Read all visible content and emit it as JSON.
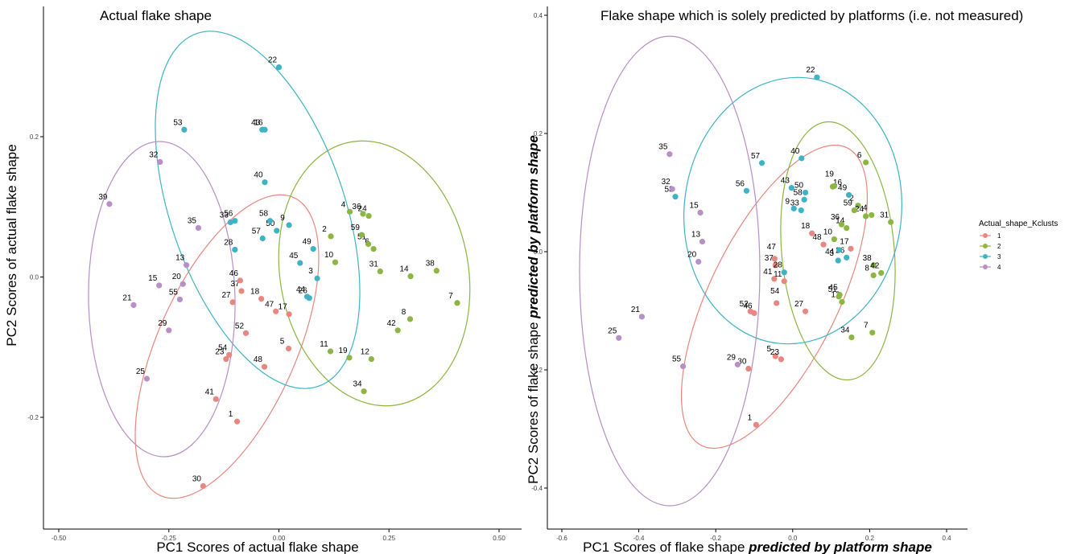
{
  "figure": {
    "legend_title": "Actual_shape_Kclusts"
  },
  "legend": [
    {
      "name": "1",
      "color": "#E8877F"
    },
    {
      "name": "2",
      "color": "#8CB542"
    },
    {
      "name": "3",
      "color": "#3FB3C4"
    },
    {
      "name": "4",
      "color": "#B690C7"
    }
  ],
  "chart_data": [
    {
      "type": "scatter",
      "title": "Actual flake shape",
      "xlabel": "PC1 Scores of actual flake shape",
      "ylabel": "PC2 Scores of actual flake shape",
      "xlim": [
        -0.5,
        0.5
      ],
      "ylim": [
        -0.33,
        0.33
      ],
      "xticks": [
        -0.5,
        -0.25,
        0,
        0.25,
        0.5
      ],
      "xtick_labels": [
        "-0.50",
        "-0.25",
        "0.00",
        "0.25",
        "0.50"
      ],
      "yticks": [
        -0.2,
        0,
        0.2
      ],
      "ytick_labels": [
        "-0.2",
        "0.0",
        "0.2"
      ],
      "grid": false,
      "legend_placement": "right",
      "series": [
        {
          "name": "1",
          "color": "#E8877F",
          "points": [
            {
              "label": "1",
              "x": -0.095,
              "y": -0.206
            },
            {
              "label": "5",
              "x": 0.022,
              "y": -0.102
            },
            {
              "label": "17",
              "x": 0.023,
              "y": -0.053
            },
            {
              "label": "18",
              "x": -0.04,
              "y": -0.031
            },
            {
              "label": "23",
              "x": -0.12,
              "y": -0.117
            },
            {
              "label": "27",
              "x": -0.105,
              "y": -0.036
            },
            {
              "label": "30",
              "x": -0.172,
              "y": -0.298
            },
            {
              "label": "37",
              "x": -0.085,
              "y": -0.02
            },
            {
              "label": "41",
              "x": -0.143,
              "y": -0.174
            },
            {
              "label": "46",
              "x": -0.088,
              "y": -0.005
            },
            {
              "label": "47",
              "x": -0.007,
              "y": -0.049
            },
            {
              "label": "48",
              "x": -0.033,
              "y": -0.128
            },
            {
              "label": "52",
              "x": -0.075,
              "y": -0.08
            },
            {
              "label": "54",
              "x": -0.113,
              "y": -0.111
            }
          ]
        },
        {
          "name": "2",
          "color": "#8CB542",
          "points": [
            {
              "label": "2",
              "x": 0.118,
              "y": 0.058
            },
            {
              "label": "4",
              "x": 0.161,
              "y": 0.093
            },
            {
              "label": "6",
              "x": 0.215,
              "y": 0.04
            },
            {
              "label": "7",
              "x": 0.405,
              "y": -0.037
            },
            {
              "label": "8",
              "x": 0.298,
              "y": -0.06
            },
            {
              "label": "10",
              "x": 0.128,
              "y": 0.021
            },
            {
              "label": "11",
              "x": 0.117,
              "y": -0.106
            },
            {
              "label": "12",
              "x": 0.21,
              "y": -0.117
            },
            {
              "label": "14",
              "x": 0.299,
              "y": 0.001
            },
            {
              "label": "19",
              "x": 0.16,
              "y": -0.115
            },
            {
              "label": "24",
              "x": 0.204,
              "y": 0.087
            },
            {
              "label": "31",
              "x": 0.23,
              "y": 0.008
            },
            {
              "label": "34",
              "x": 0.193,
              "y": -0.163
            },
            {
              "label": "36",
              "x": 0.191,
              "y": 0.09
            },
            {
              "label": "38",
              "x": 0.358,
              "y": 0.009
            },
            {
              "label": "42",
              "x": 0.27,
              "y": -0.076
            },
            {
              "label": "51",
              "x": 0.203,
              "y": 0.047
            },
            {
              "label": "59",
              "x": 0.188,
              "y": 0.06
            }
          ]
        },
        {
          "name": "3",
          "color": "#3FB3C4",
          "points": [
            {
              "label": "3",
              "x": 0.087,
              "y": -0.002
            },
            {
              "label": "9",
              "x": 0.023,
              "y": 0.074
            },
            {
              "label": "16",
              "x": -0.032,
              "y": 0.21
            },
            {
              "label": "22",
              "x": 0.0,
              "y": 0.299
            },
            {
              "label": "26",
              "x": 0.069,
              "y": -0.03
            },
            {
              "label": "28",
              "x": -0.1,
              "y": 0.039
            },
            {
              "label": "33",
              "x": -0.11,
              "y": 0.078
            },
            {
              "label": "40",
              "x": -0.032,
              "y": 0.135
            },
            {
              "label": "43",
              "x": -0.038,
              "y": 0.21
            },
            {
              "label": "44",
              "x": 0.064,
              "y": -0.028
            },
            {
              "label": "45",
              "x": 0.048,
              "y": 0.02
            },
            {
              "label": "49",
              "x": 0.078,
              "y": 0.04
            },
            {
              "label": "50",
              "x": -0.005,
              "y": 0.066
            },
            {
              "label": "53",
              "x": -0.215,
              "y": 0.21
            },
            {
              "label": "56",
              "x": -0.1,
              "y": 0.08
            },
            {
              "label": "57",
              "x": -0.037,
              "y": 0.055
            },
            {
              "label": "58",
              "x": -0.02,
              "y": 0.08
            }
          ]
        },
        {
          "name": "4",
          "color": "#B690C7",
          "points": [
            {
              "label": "13",
              "x": -0.21,
              "y": 0.017
            },
            {
              "label": "15",
              "x": -0.272,
              "y": -0.012
            },
            {
              "label": "20",
              "x": -0.218,
              "y": -0.01
            },
            {
              "label": "21",
              "x": -0.33,
              "y": -0.04
            },
            {
              "label": "25",
              "x": -0.3,
              "y": -0.145
            },
            {
              "label": "29",
              "x": -0.25,
              "y": -0.076
            },
            {
              "label": "32",
              "x": -0.27,
              "y": 0.164
            },
            {
              "label": "35",
              "x": -0.183,
              "y": 0.07
            },
            {
              "label": "39",
              "x": -0.385,
              "y": 0.104
            },
            {
              "label": "55",
              "x": -0.225,
              "y": -0.032
            }
          ]
        }
      ]
    },
    {
      "type": "scatter",
      "title": "Flake shape which is solely predicted by platforms (i.e. not measured)",
      "xlabel": "PC1 Scores of flake shape ",
      "xlabel_emphasis": "predicted by platform shape",
      "ylabel": "PC2 Scores of flake shape ",
      "ylabel_emphasis": "predicted by platform shape",
      "xlim": [
        -0.63,
        0.46
      ],
      "ylim": [
        -0.44,
        0.4
      ],
      "xticks": [
        -0.6,
        -0.4,
        -0.2,
        0,
        0.2,
        0.4
      ],
      "xtick_labels": [
        "-0.6",
        "-0.4",
        "-0.2",
        "0.0",
        "0.2",
        "0.4"
      ],
      "yticks": [
        -0.4,
        -0.2,
        0,
        0.2,
        0.4
      ],
      "ytick_labels": [
        "-0.4",
        "-0.2",
        "0.0",
        "0.2",
        "0.4"
      ],
      "grid": false,
      "legend_placement": "right",
      "series": [
        {
          "name": "1",
          "color": "#E8877F",
          "points": [
            {
              "label": "1",
              "x": -0.095,
              "y": -0.293
            },
            {
              "label": "5",
              "x": -0.045,
              "y": -0.177
            },
            {
              "label": "11",
              "x": -0.022,
              "y": -0.05
            },
            {
              "label": "17",
              "x": 0.151,
              "y": 0.005
            },
            {
              "label": "18",
              "x": 0.05,
              "y": 0.031
            },
            {
              "label": "23",
              "x": -0.03,
              "y": -0.182
            },
            {
              "label": "27",
              "x": 0.033,
              "y": -0.101
            },
            {
              "label": "30",
              "x": -0.115,
              "y": -0.198
            },
            {
              "label": "37",
              "x": -0.045,
              "y": -0.023
            },
            {
              "label": "41",
              "x": -0.048,
              "y": -0.046
            },
            {
              "label": "46",
              "x": -0.1,
              "y": -0.104
            },
            {
              "label": "47",
              "x": -0.047,
              "y": -0.012
            },
            {
              "label": "48",
              "x": 0.08,
              "y": 0.012
            },
            {
              "label": "52",
              "x": -0.11,
              "y": -0.101
            },
            {
              "label": "54",
              "x": -0.042,
              "y": -0.087
            }
          ]
        },
        {
          "name": "2",
          "color": "#8CB542",
          "points": [
            {
              "label": "2",
              "x": 0.17,
              "y": 0.078
            },
            {
              "label": "4",
              "x": 0.205,
              "y": 0.062
            },
            {
              "label": "6",
              "x": 0.19,
              "y": 0.151
            },
            {
              "label": "7",
              "x": 0.207,
              "y": -0.137
            },
            {
              "label": "8",
              "x": 0.21,
              "y": -0.04
            },
            {
              "label": "10",
              "x": 0.108,
              "y": 0.021
            },
            {
              "label": "12",
              "x": 0.128,
              "y": -0.085
            },
            {
              "label": "14",
              "x": 0.14,
              "y": 0.04
            },
            {
              "label": "16",
              "x": 0.104,
              "y": 0.11
            },
            {
              "label": "19",
              "x": 0.108,
              "y": 0.111
            },
            {
              "label": "24",
              "x": 0.19,
              "y": 0.06
            },
            {
              "label": "31",
              "x": 0.255,
              "y": 0.05
            },
            {
              "label": "34",
              "x": 0.153,
              "y": -0.145
            },
            {
              "label": "36",
              "x": 0.127,
              "y": 0.046
            },
            {
              "label": "38",
              "x": 0.21,
              "y": -0.023
            },
            {
              "label": "42",
              "x": 0.23,
              "y": -0.036
            },
            {
              "label": "45",
              "x": 0.122,
              "y": -0.073
            },
            {
              "label": "51",
              "x": 0.12,
              "y": -0.076
            },
            {
              "label": "59",
              "x": 0.16,
              "y": 0.07
            }
          ]
        },
        {
          "name": "3",
          "color": "#3FB3C4",
          "points": [
            {
              "label": "3",
              "x": 0.118,
              "y": -0.015
            },
            {
              "label": "9",
              "x": 0.003,
              "y": 0.073
            },
            {
              "label": "22",
              "x": 0.063,
              "y": 0.295
            },
            {
              "label": "26",
              "x": 0.14,
              "y": -0.01
            },
            {
              "label": "28",
              "x": -0.022,
              "y": -0.035
            },
            {
              "label": "33",
              "x": 0.022,
              "y": 0.07
            },
            {
              "label": "40",
              "x": 0.023,
              "y": 0.158
            },
            {
              "label": "43",
              "x": -0.003,
              "y": 0.108
            },
            {
              "label": "44",
              "x": 0.121,
              "y": 0.003
            },
            {
              "label": "49",
              "x": 0.146,
              "y": 0.096
            },
            {
              "label": "50",
              "x": 0.033,
              "y": 0.1
            },
            {
              "label": "53",
              "x": -0.305,
              "y": 0.093
            },
            {
              "label": "56",
              "x": -0.12,
              "y": 0.103
            },
            {
              "label": "57",
              "x": -0.08,
              "y": 0.15
            },
            {
              "label": "58",
              "x": 0.03,
              "y": 0.088
            }
          ]
        },
        {
          "name": "4",
          "color": "#B690C7",
          "points": [
            {
              "label": "13",
              "x": -0.235,
              "y": 0.017
            },
            {
              "label": "15",
              "x": -0.24,
              "y": 0.066
            },
            {
              "label": "20",
              "x": -0.245,
              "y": -0.017
            },
            {
              "label": "21",
              "x": -0.392,
              "y": -0.11
            },
            {
              "label": "25",
              "x": -0.452,
              "y": -0.146
            },
            {
              "label": "29",
              "x": -0.143,
              "y": -0.191
            },
            {
              "label": "32",
              "x": -0.313,
              "y": 0.106
            },
            {
              "label": "35",
              "x": -0.32,
              "y": 0.165
            },
            {
              "label": "55",
              "x": -0.285,
              "y": -0.194
            }
          ]
        }
      ]
    }
  ]
}
